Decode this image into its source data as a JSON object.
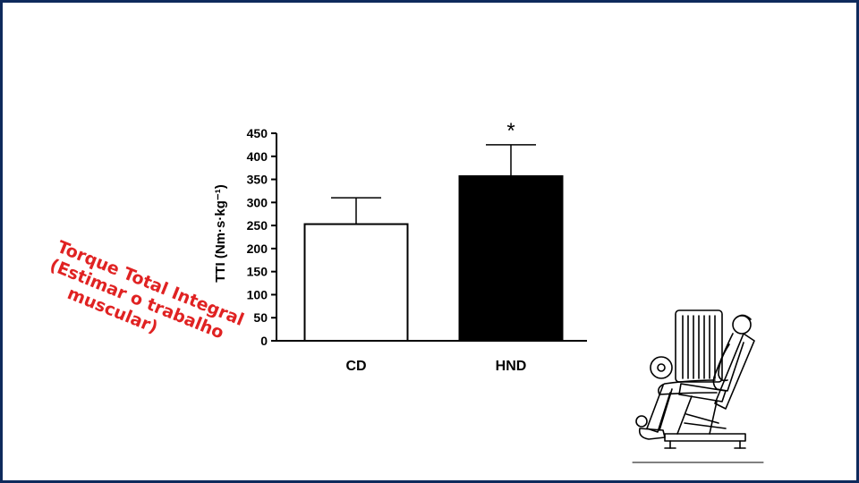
{
  "chart_data": {
    "type": "bar",
    "categories": [
      "CD",
      "HND"
    ],
    "values": [
      253,
      357
    ],
    "error": [
      57,
      68
    ],
    "bar_colors": [
      "#ffffff",
      "#000000"
    ],
    "ylabel": "TTI (Nm·s·kg⁻¹)",
    "ylim": [
      0,
      450
    ],
    "yticks": [
      0,
      50,
      100,
      150,
      200,
      250,
      300,
      350,
      400,
      450
    ],
    "significance": {
      "category": "HND",
      "marker": "*"
    }
  },
  "annotation": {
    "lines": [
      "Torque Total Integral",
      "(Estimar o trabalho",
      "muscular)"
    ],
    "color": "#e02222"
  },
  "illustration": {
    "icon": "leg-press-machine-icon"
  },
  "frame_color": "#0e2a5c"
}
